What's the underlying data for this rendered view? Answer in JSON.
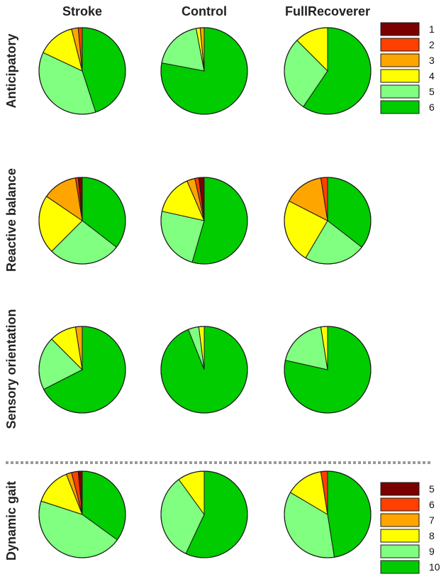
{
  "chart_data": {
    "type": "pie",
    "column_titles": [
      "Stroke",
      "Control",
      "FullRecoverer"
    ],
    "legends": [
      {
        "name": "legend-top",
        "entries": [
          {
            "label": "1",
            "color": "#7a0000"
          },
          {
            "label": "2",
            "color": "#ff4000"
          },
          {
            "label": "3",
            "color": "#ffa500"
          },
          {
            "label": "4",
            "color": "#ffff00"
          },
          {
            "label": "5",
            "color": "#80ff80"
          },
          {
            "label": "6",
            "color": "#00cc00"
          }
        ]
      },
      {
        "name": "legend-bottom",
        "entries": [
          {
            "label": "5",
            "color": "#7a0000"
          },
          {
            "label": "6",
            "color": "#ff4000"
          },
          {
            "label": "7",
            "color": "#ffa500"
          },
          {
            "label": "8",
            "color": "#ffff00"
          },
          {
            "label": "9",
            "color": "#80ff80"
          },
          {
            "label": "10",
            "color": "#00cc00"
          }
        ]
      }
    ],
    "rows": [
      {
        "title": "Anticipatory",
        "legend": 0,
        "pies": [
          {
            "group": "Stroke",
            "values": [
              0,
              1.5,
              2.5,
              14,
              37,
              45
            ]
          },
          {
            "group": "Control",
            "values": [
              0,
              0,
              1.5,
              1.5,
              19,
              78
            ]
          },
          {
            "group": "FullRecoverer",
            "values": [
              0,
              0,
              0,
              12.5,
              28,
              59.5
            ]
          }
        ]
      },
      {
        "title": "Reactive balance",
        "legend": 0,
        "pies": [
          {
            "group": "Stroke",
            "values": [
              1.5,
              1,
              13,
              22,
              27,
              35.5
            ]
          },
          {
            "group": "Control",
            "values": [
              2,
              1.5,
              3,
              15,
              24,
              54.5
            ]
          },
          {
            "group": "FullRecoverer",
            "values": [
              0,
              2.5,
              15,
              24,
              23,
              35.5
            ]
          }
        ]
      },
      {
        "title": "Sensory orientation",
        "legend": 0,
        "pies": [
          {
            "group": "Stroke",
            "values": [
              0,
              0,
              2.5,
              10,
              20,
              67.5
            ]
          },
          {
            "group": "Control",
            "values": [
              0,
              0,
              0,
              2,
              4,
              94
            ]
          },
          {
            "group": "FullRecoverer",
            "values": [
              0,
              0,
              0,
              2.5,
              19,
              78.5
            ]
          }
        ]
      },
      {
        "title": "Dynamic gait",
        "legend": 1,
        "pies": [
          {
            "group": "Stroke",
            "values": [
              1.5,
              2.5,
              2,
              14,
              45,
              35
            ]
          },
          {
            "group": "Control",
            "values": [
              0,
              0,
              0,
              10,
              33,
              57
            ]
          },
          {
            "group": "FullRecoverer",
            "values": [
              0,
              2.5,
              0,
              14,
              36,
              47.5
            ]
          }
        ]
      }
    ]
  }
}
